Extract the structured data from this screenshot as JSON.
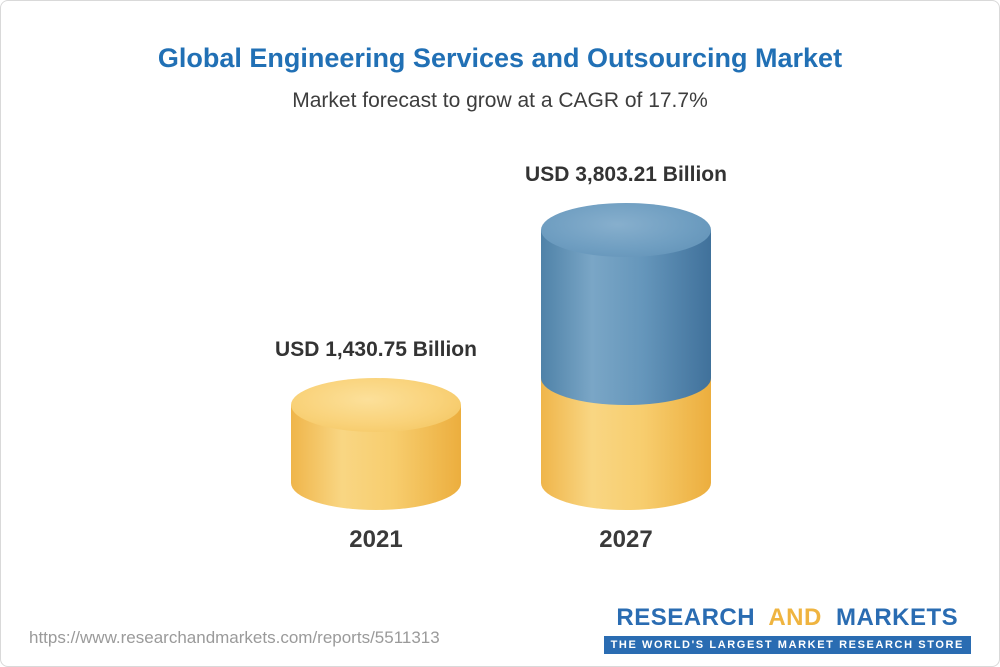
{
  "header": {
    "title": "Global Engineering Services and Outsourcing Market",
    "subtitle": "Market forecast to grow at a CAGR of 17.7%"
  },
  "chart_data": {
    "type": "bar",
    "categories": [
      "2021",
      "2027"
    ],
    "values": [
      1430.75,
      3803.21
    ],
    "value_labels": [
      "USD 1,430.75 Billion",
      "USD 3,803.21 Billion"
    ],
    "unit": "USD Billion",
    "title": "Global Engineering Services and Outsourcing Market",
    "subtitle": "Market forecast to grow at a CAGR of 17.7%",
    "cagr_pct": 17.7,
    "ylim": [
      0,
      4000
    ],
    "grid": false,
    "legend": "none",
    "bar_style": "3d-cylinder",
    "colors": {
      "bar_2021": "#f6c65f",
      "bar_2027_base_segment": "#f6c65f",
      "bar_2027_growth_segment": "#5d8eb4"
    }
  },
  "footer": {
    "url": "https://www.researchandmarkets.com/reports/5511313",
    "logo": {
      "research": "RESEARCH",
      "and": "AND",
      "markets": "MARKETS",
      "tagline": "THE WORLD'S LARGEST MARKET RESEARCH STORE"
    }
  },
  "colors": {
    "title_blue": "#2170b5",
    "logo_blue": "#2a6cb2",
    "logo_yellow": "#efb440"
  }
}
